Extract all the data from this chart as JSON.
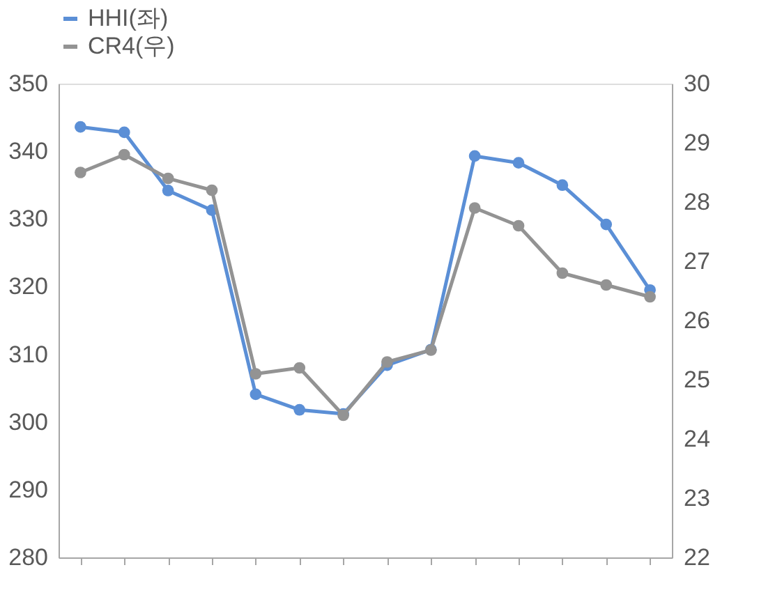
{
  "chart_data": {
    "type": "line",
    "categories": [
      null,
      null,
      null,
      null,
      null,
      null,
      null,
      null,
      null,
      null,
      null,
      null,
      null,
      null
    ],
    "series": [
      {
        "name": "HHI(좌)",
        "color": "#5b8fd6",
        "values": [
          343.6,
          342.8,
          334.2,
          331.3,
          304.1,
          301.8,
          301.2,
          308.4,
          310.7,
          339.3,
          338.3,
          335.0,
          329.2,
          319.5
        ]
      },
      {
        "name": "CR4(우)",
        "color": "#939393",
        "axis": "y2",
        "values": [
          28.5,
          28.8,
          28.4,
          28.2,
          25.1,
          25.2,
          24.4,
          25.3,
          25.5,
          27.9,
          27.6,
          26.8,
          26.6,
          26.4
        ]
      }
    ],
    "ylim": [
      280,
      350
    ],
    "yticks": [
      280,
      290,
      300,
      310,
      320,
      330,
      340,
      350
    ],
    "y2lim": [
      22,
      30
    ],
    "y2ticks": [
      22,
      23,
      24,
      25,
      26,
      27,
      28,
      29,
      30
    ],
    "marker": "circle",
    "grid": false,
    "legend": "top"
  }
}
